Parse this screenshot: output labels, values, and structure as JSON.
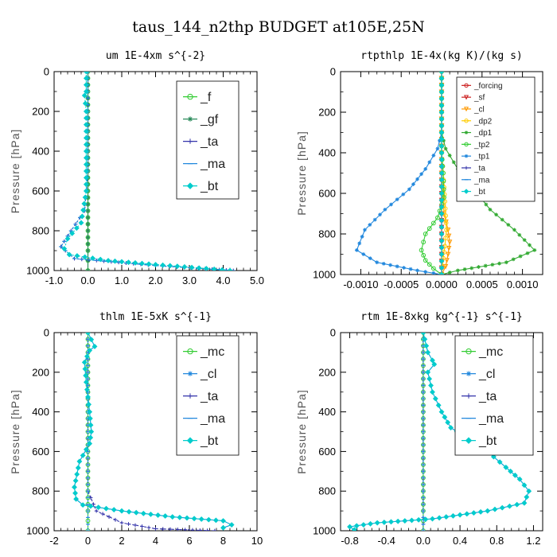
{
  "page_title": "taus_144_n2thp  BUDGET at105E,25N",
  "chart_data": [
    {
      "type": "line",
      "title": "um  1E-4xm s^{-2}",
      "ylabel": "Pressure [hPa]",
      "xlim": [
        -1.0,
        5.0
      ],
      "ylim": [
        1000,
        0
      ],
      "xticks": [
        "-1.0",
        "0.0",
        "1.0",
        "2.0",
        "3.0",
        "4.0",
        "5.0"
      ],
      "xtick_values": [
        -1,
        0,
        1,
        2,
        3,
        4,
        5
      ],
      "yticks": [
        "0",
        "200",
        "400",
        "600",
        "800",
        "1000"
      ],
      "ytick_values": [
        0,
        200,
        400,
        600,
        800,
        1000
      ],
      "legend_position": "top-right",
      "series": [
        {
          "name": "_f",
          "color": "#33cc33",
          "marker": "circle",
          "x": [
            0,
            0,
            0,
            0,
            0,
            0,
            0,
            0,
            0,
            0,
            0,
            0
          ],
          "y": [
            0,
            100,
            200,
            300,
            400,
            500,
            600,
            700,
            800,
            900,
            950,
            1000
          ]
        },
        {
          "name": "_gf",
          "color": "#2a8a5a",
          "marker": "star",
          "x": [
            0,
            0,
            0,
            0,
            0,
            0,
            0,
            0,
            0,
            0,
            0,
            0
          ],
          "y": [
            0,
            100,
            200,
            300,
            400,
            500,
            600,
            700,
            800,
            900,
            950,
            1000
          ]
        },
        {
          "name": "_ta",
          "color": "#3333aa",
          "marker": "plus",
          "x": [
            0,
            0,
            0,
            0,
            0,
            0,
            -0.1,
            -0.5,
            -0.8,
            -0.4,
            2.0,
            4.3
          ],
          "y": [
            0,
            100,
            200,
            300,
            400,
            500,
            700,
            800,
            880,
            940,
            975,
            1000
          ]
        },
        {
          "name": "_ma",
          "color": "#2288dd",
          "marker": "dash",
          "x": [
            0,
            0,
            0,
            0,
            0,
            0,
            -0.1,
            -0.5,
            -0.8,
            -0.4,
            2.0,
            4.3
          ],
          "y": [
            0,
            100,
            200,
            300,
            400,
            500,
            700,
            800,
            880,
            940,
            975,
            1000
          ]
        },
        {
          "name": "_bt",
          "color": "#00cccc",
          "marker": "diamond",
          "x": [
            -0.05,
            -0.05,
            -0.1,
            -0.05,
            -0.05,
            -0.05,
            -0.05,
            -0.05,
            -0.2,
            -0.6,
            -0.7,
            -0.55,
            0.6,
            2.0,
            3.5,
            4.2
          ],
          "y": [
            0,
            100,
            120,
            200,
            300,
            400,
            500,
            600,
            760,
            840,
            890,
            920,
            950,
            970,
            990,
            1000
          ]
        }
      ]
    },
    {
      "type": "line",
      "title": "rtpthlp  1E-4x(kg K)/(kg s)",
      "ylabel": "Pressure [hPa]",
      "xlim": [
        -0.00125,
        0.00125
      ],
      "ylim": [
        1000,
        0
      ],
      "xticks": [
        "-0.0010",
        "-0.0005",
        "0.0000",
        "0.0005",
        "0.0010"
      ],
      "xtick_values": [
        -0.001,
        -0.0005,
        0,
        0.0005,
        0.001
      ],
      "yticks": [
        "0",
        "200",
        "400",
        "600",
        "800",
        "1000"
      ],
      "ytick_values": [
        0,
        200,
        400,
        600,
        800,
        1000
      ],
      "legend_position": "top-right",
      "series": [
        {
          "name": "_forcing",
          "color": "#cc2222",
          "marker": "circle",
          "x": [
            0,
            0,
            0,
            0,
            0,
            0,
            0,
            0,
            0,
            0,
            0
          ],
          "y": [
            0,
            100,
            200,
            300,
            400,
            500,
            600,
            700,
            800,
            900,
            1000
          ]
        },
        {
          "name": "_sf",
          "color": "#cc2222",
          "marker": "tri",
          "x": [
            0,
            0,
            0,
            0,
            0,
            0,
            0,
            0,
            0,
            0,
            0
          ],
          "y": [
            0,
            100,
            200,
            300,
            400,
            500,
            600,
            700,
            800,
            900,
            1000
          ]
        },
        {
          "name": "_cl",
          "color": "#ff9900",
          "marker": "tri",
          "x": [
            0,
            0,
            0,
            0,
            0,
            0,
            3e-05,
            8e-05,
            0.0001,
            8e-05,
            5e-05,
            0
          ],
          "y": [
            0,
            100,
            200,
            300,
            400,
            500,
            700,
            780,
            840,
            900,
            960,
            1000
          ]
        },
        {
          "name": "_dp2",
          "color": "#ffcc00",
          "marker": "circle",
          "x": [
            0,
            0,
            0,
            0,
            0,
            2e-05,
            4e-05,
            6e-05,
            4e-05,
            2e-05,
            0
          ],
          "y": [
            0,
            100,
            200,
            300,
            400,
            500,
            640,
            780,
            860,
            920,
            1000
          ]
        },
        {
          "name": "_dp1",
          "color": "#33aa33",
          "marker": "star",
          "x": [
            0,
            0,
            0,
            0,
            5e-05,
            0.0002,
            0.0004,
            0.0006,
            0.0009,
            0.00115,
            0.0008,
            0.0002,
            0
          ],
          "y": [
            0,
            100,
            200,
            300,
            380,
            480,
            580,
            680,
            780,
            880,
            940,
            980,
            1000
          ]
        },
        {
          "name": "_tp2",
          "color": "#33cc33",
          "marker": "circle",
          "x": [
            0,
            0,
            0,
            0,
            0,
            2e-05,
            3e-05,
            -5e-05,
            -0.0002,
            -0.00025,
            -0.0002,
            -0.0001,
            0
          ],
          "y": [
            0,
            100,
            200,
            300,
            400,
            500,
            620,
            720,
            800,
            880,
            930,
            970,
            1000
          ]
        },
        {
          "name": "_tp1",
          "color": "#2288dd",
          "marker": "star",
          "x": [
            0,
            0,
            0,
            0,
            -5e-05,
            -0.0002,
            -0.0004,
            -0.0007,
            -0.00095,
            -0.00105,
            -0.0008,
            -0.0003,
            0
          ],
          "y": [
            0,
            100,
            200,
            300,
            380,
            480,
            580,
            680,
            780,
            880,
            940,
            980,
            1000
          ]
        },
        {
          "name": "_ta",
          "color": "#3333aa",
          "marker": "plus",
          "x": [
            0,
            0,
            0,
            0,
            0,
            0,
            0,
            0,
            0,
            0,
            0
          ],
          "y": [
            0,
            100,
            200,
            300,
            400,
            500,
            600,
            700,
            800,
            900,
            1000
          ]
        },
        {
          "name": "_ma",
          "color": "#2288dd",
          "marker": "dash",
          "x": [
            0,
            0,
            0,
            0,
            0,
            0,
            0,
            0,
            0,
            0,
            0
          ],
          "y": [
            0,
            100,
            200,
            300,
            400,
            500,
            600,
            700,
            800,
            900,
            1000
          ]
        },
        {
          "name": "_bt",
          "color": "#00cccc",
          "marker": "diamond",
          "x": [
            0,
            0,
            0,
            0,
            0,
            0,
            0,
            0,
            0,
            0,
            0
          ],
          "y": [
            0,
            100,
            200,
            300,
            400,
            500,
            600,
            700,
            800,
            900,
            1000
          ]
        }
      ]
    },
    {
      "type": "line",
      "title": "thlm  1E-5xK  s^{-1}",
      "ylabel": "Pressure [hPa]",
      "xlim": [
        -2,
        10
      ],
      "ylim": [
        1000,
        0
      ],
      "xticks": [
        "-2",
        "0",
        "2",
        "4",
        "6",
        "8",
        "10"
      ],
      "xtick_values": [
        -2,
        0,
        2,
        4,
        6,
        8,
        10
      ],
      "yticks": [
        "0",
        "200",
        "400",
        "600",
        "800",
        "1000"
      ],
      "ytick_values": [
        0,
        200,
        400,
        600,
        800,
        1000
      ],
      "legend_position": "top-right",
      "series": [
        {
          "name": "_mc",
          "color": "#33cc33",
          "marker": "circle",
          "x": [
            0,
            0,
            0,
            0,
            0,
            0,
            0,
            0,
            0,
            0,
            0,
            0
          ],
          "y": [
            0,
            100,
            200,
            300,
            400,
            500,
            600,
            700,
            800,
            900,
            950,
            1000
          ]
        },
        {
          "name": "_cl",
          "color": "#2288dd",
          "marker": "star",
          "x": [
            0,
            0.4,
            0.1,
            -0.2,
            -0.1,
            0.1,
            0.2,
            0.1,
            -0.5,
            -0.8,
            -0.7,
            -0.3,
            2.0,
            5.0,
            8.0,
            8.5,
            8.0
          ],
          "y": [
            0,
            70,
            90,
            150,
            250,
            400,
            500,
            560,
            650,
            780,
            840,
            870,
            900,
            930,
            950,
            970,
            985
          ]
        },
        {
          "name": "_ta",
          "color": "#3333aa",
          "marker": "plus",
          "x": [
            0,
            0,
            0,
            0,
            0,
            0,
            0,
            0,
            0,
            0.5,
            2.0,
            4.0,
            7.5
          ],
          "y": [
            0,
            100,
            200,
            300,
            400,
            500,
            600,
            700,
            800,
            900,
            960,
            990,
            1000
          ]
        },
        {
          "name": "_ma",
          "color": "#2288dd",
          "marker": "dash",
          "x": [
            0,
            0,
            0,
            0,
            0,
            0,
            0,
            0,
            0,
            0,
            0
          ],
          "y": [
            0,
            100,
            200,
            300,
            400,
            500,
            600,
            700,
            800,
            900,
            1000
          ]
        },
        {
          "name": "_bt",
          "color": "#00cccc",
          "marker": "diamond",
          "x": [
            0,
            0.4,
            0.1,
            -0.2,
            -0.1,
            0.1,
            0.2,
            0.1,
            -0.5,
            -0.8,
            -0.7,
            -0.3,
            2.0,
            5.0,
            8.0,
            8.5,
            8.0
          ],
          "y": [
            0,
            70,
            90,
            150,
            250,
            400,
            500,
            560,
            650,
            780,
            840,
            870,
            900,
            930,
            950,
            970,
            985
          ]
        }
      ]
    },
    {
      "type": "line",
      "title": "rtm  1E-8xkg  kg^{-1} s^{-1}",
      "ylabel": "Pressure [hPa]",
      "xlim": [
        -0.9,
        1.3
      ],
      "ylim": [
        1000,
        0
      ],
      "xticks": [
        "-0.8",
        "-0.4",
        "0.0",
        "0.4",
        "0.8",
        "1.2"
      ],
      "xtick_values": [
        -0.8,
        -0.4,
        0,
        0.4,
        0.8,
        1.2
      ],
      "yticks": [
        "0",
        "200",
        "400",
        "600",
        "800",
        "1000"
      ],
      "ytick_values": [
        0,
        200,
        400,
        600,
        800,
        1000
      ],
      "legend_position": "top-right",
      "series": [
        {
          "name": "_mc",
          "color": "#33cc33",
          "marker": "circle",
          "x": [
            0,
            0,
            0,
            0,
            0,
            0,
            0,
            0,
            0,
            0,
            0,
            0
          ],
          "y": [
            0,
            100,
            200,
            300,
            400,
            500,
            600,
            700,
            800,
            900,
            950,
            1000
          ]
        },
        {
          "name": "_cl",
          "color": "#2288dd",
          "marker": "star",
          "x": [
            0,
            0.05,
            0.1,
            0.12,
            0.05,
            0.1,
            0.2,
            0.3,
            0.5,
            0.7,
            0.9,
            1.05,
            1.15,
            1.1,
            0.7,
            0.1,
            -0.5,
            -0.8,
            -0.75
          ],
          "y": [
            0,
            100,
            140,
            160,
            200,
            300,
            400,
            480,
            540,
            600,
            680,
            740,
            800,
            860,
            900,
            940,
            960,
            980,
            995
          ]
        },
        {
          "name": "_ta",
          "color": "#3333aa",
          "marker": "plus",
          "x": [
            0,
            0,
            0,
            0,
            0,
            0,
            0,
            0,
            0,
            0,
            0
          ],
          "y": [
            0,
            100,
            200,
            300,
            400,
            500,
            600,
            700,
            800,
            900,
            1000
          ]
        },
        {
          "name": "_ma",
          "color": "#2288dd",
          "marker": "dash",
          "x": [
            0,
            0,
            0,
            0,
            0,
            0,
            0,
            0,
            0,
            0,
            0
          ],
          "y": [
            0,
            100,
            200,
            300,
            400,
            500,
            600,
            700,
            800,
            900,
            1000
          ]
        },
        {
          "name": "_bt",
          "color": "#00cccc",
          "marker": "diamond",
          "x": [
            0,
            0.05,
            0.1,
            0.12,
            0.05,
            0.1,
            0.2,
            0.3,
            0.5,
            0.7,
            0.9,
            1.05,
            1.15,
            1.1,
            0.7,
            0.1,
            -0.5,
            -0.8,
            -0.75
          ],
          "y": [
            0,
            100,
            140,
            160,
            200,
            300,
            400,
            480,
            540,
            600,
            680,
            740,
            800,
            860,
            900,
            940,
            960,
            980,
            995
          ]
        }
      ]
    }
  ]
}
